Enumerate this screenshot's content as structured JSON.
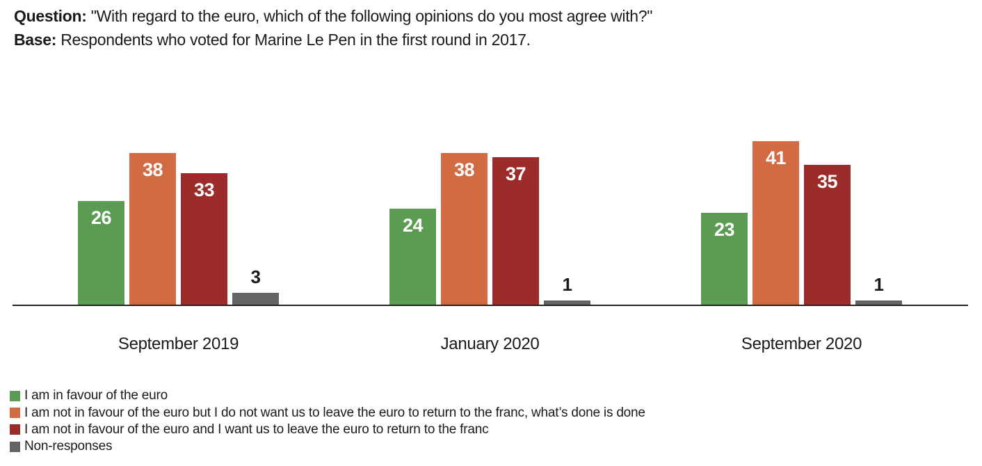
{
  "header": {
    "question_label": "Question:",
    "question_text": "\"With regard to the euro, which of the following opinions do you most agree with?\"",
    "base_label": "Base:",
    "base_text": "Respondents who voted for Marine Le Pen in the first round in 2017."
  },
  "chart_data": {
    "type": "bar",
    "title": "",
    "categories": [
      "September 2019",
      "January 2020",
      "September 2020"
    ],
    "series": [
      {
        "key": "in-favour",
        "name": "I am in favour of the euro",
        "color": "#5c9b54",
        "values": [
          26,
          24,
          23
        ]
      },
      {
        "key": "not-in-favour-stay",
        "name": "I am not in favour of the euro but I do not want us to leave the euro to return to the franc, what’s done is done",
        "color": "#d26b43",
        "values": [
          38,
          38,
          41
        ]
      },
      {
        "key": "not-in-favour-leave",
        "name": "I am not in favour of the euro and I want us to leave the euro to return to the franc",
        "color": "#9c2c2a",
        "values": [
          33,
          37,
          35
        ]
      },
      {
        "key": "non-responses",
        "name": "Non-responses",
        "color": "#646464",
        "values": [
          3,
          1,
          1
        ]
      }
    ],
    "value_labels": "on",
    "xlabel": "",
    "ylabel": "",
    "ylim": [
      0,
      45
    ],
    "y_axis_visible": false,
    "gridlines": false,
    "legend_position": "bottom-left",
    "colors": {
      "text": "#1a1a1a",
      "axis": "#222222",
      "background": "#ffffff"
    }
  }
}
